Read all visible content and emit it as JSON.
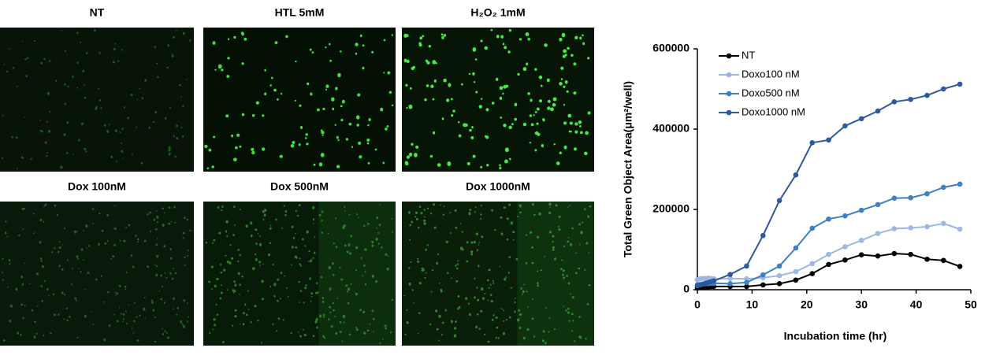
{
  "panels": [
    "NT",
    "HTL 5mM",
    "H₂O₂ 1mM",
    "Dox 100nM",
    "Dox 500nM",
    "Dox 1000nM"
  ],
  "chart_data": {
    "type": "line",
    "x_label": "Incubation time (hr)",
    "y_label": "Total Green Object Area(μm²/well)",
    "x": [
      0,
      0.5,
      1,
      1.5,
      2,
      2.5,
      3,
      6,
      9,
      12,
      15,
      18,
      21,
      24,
      27,
      30,
      33,
      36,
      39,
      42,
      45,
      48
    ],
    "series": [
      {
        "name": "NT",
        "color": "#000000",
        "values": [
          5000,
          6000,
          7000,
          7000,
          7000,
          8000,
          8000,
          8000,
          8000,
          12000,
          15000,
          24000,
          40000,
          63000,
          74000,
          87000,
          84000,
          90000,
          88000,
          76000,
          73000,
          58000
        ]
      },
      {
        "name": "Doxo100 nM",
        "color": "#9db8e2",
        "values": [
          25000,
          27000,
          28000,
          28000,
          29000,
          28000,
          27000,
          28000,
          27000,
          30000,
          35000,
          45000,
          65000,
          88000,
          107000,
          123000,
          140000,
          152000,
          154000,
          157000,
          165000,
          151000
        ]
      },
      {
        "name": "Doxo500 nM",
        "color": "#3f7fc4",
        "values": [
          12000,
          13000,
          14000,
          15000,
          15000,
          16000,
          16000,
          15000,
          18000,
          37000,
          59000,
          104000,
          153000,
          176000,
          184000,
          198000,
          212000,
          228000,
          229000,
          239000,
          255000,
          263000
        ]
      },
      {
        "name": "Doxo1000 nM",
        "color": "#2e5a9c",
        "values": [
          10000,
          12000,
          14000,
          16000,
          18000,
          20000,
          22000,
          38000,
          59000,
          135000,
          222000,
          286000,
          366000,
          373000,
          408000,
          426000,
          445000,
          468000,
          474000,
          484000,
          500000,
          512000
        ]
      }
    ],
    "xlim": [
      0,
      50
    ],
    "xticks": [
      0,
      10,
      20,
      30,
      40,
      50
    ],
    "ylim": [
      0,
      600000
    ],
    "yticks": [
      0,
      200000,
      400000,
      600000
    ],
    "grid": false,
    "legend": "upper-left"
  }
}
